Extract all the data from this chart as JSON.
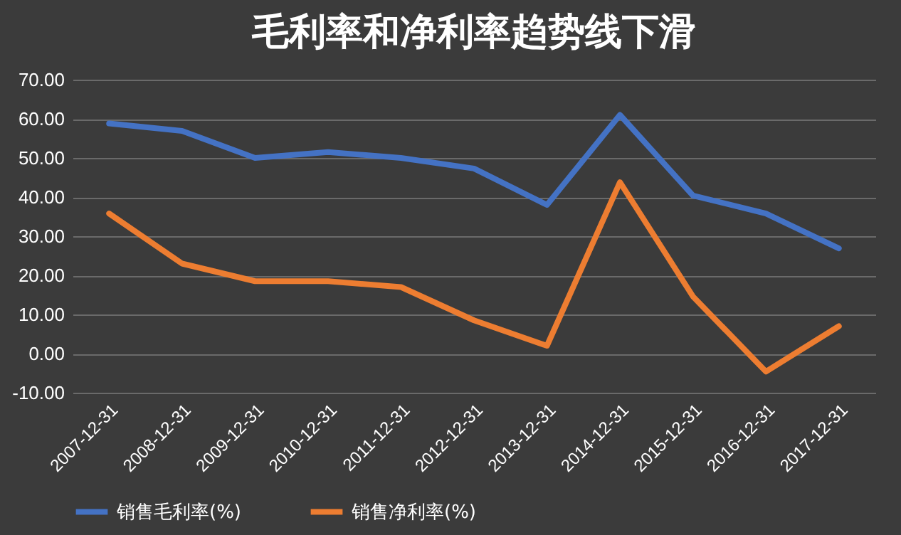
{
  "chart_data": {
    "type": "line",
    "title": "毛利率和净利率趋势线下滑",
    "categories": [
      "2007-12-31",
      "2008-12-31",
      "2009-12-31",
      "2010-12-31",
      "2011-12-31",
      "2012-12-31",
      "2013-12-31",
      "2014-12-31",
      "2015-12-31",
      "2016-12-31",
      "2017-12-31"
    ],
    "series": [
      {
        "name": "销售毛利率(%)",
        "color": "#4472c4",
        "values": [
          58.8,
          56.9,
          50,
          51.5,
          50,
          47.3,
          38,
          61,
          40.4,
          35.8,
          26.9
        ]
      },
      {
        "name": "销售净利率(%)",
        "color": "#ed7d31",
        "values": [
          35.8,
          23,
          18.5,
          18.5,
          17,
          8.5,
          2,
          43.8,
          14.6,
          -4.6,
          7
        ]
      }
    ],
    "ylim": [
      -10,
      70
    ],
    "yticks": [
      {
        "value": -10,
        "label": "-10.00"
      },
      {
        "value": 0,
        "label": "0.00"
      },
      {
        "value": 10,
        "label": "10.00"
      },
      {
        "value": 20,
        "label": "20.00"
      },
      {
        "value": 30,
        "label": "30.00"
      },
      {
        "value": 40,
        "label": "40.00"
      },
      {
        "value": 50,
        "label": "50.00"
      },
      {
        "value": 60,
        "label": "60.00"
      },
      {
        "value": 70,
        "label": "70.00"
      }
    ],
    "grid": "y",
    "legend": "bottom",
    "marker": "none",
    "line_style": "solid"
  }
}
